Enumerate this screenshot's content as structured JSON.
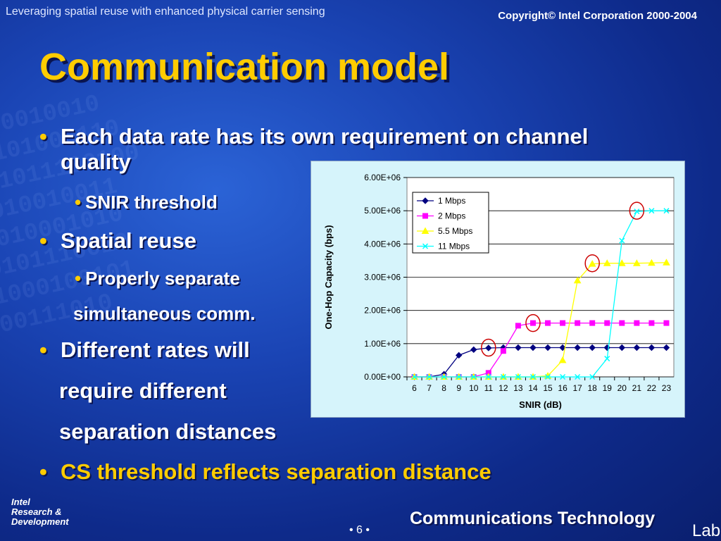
{
  "header": {
    "subtitle": "Leveraging spatial reuse with enhanced physical carrier sensing",
    "copyright": "Copyright© Intel Corporation 2000-2004"
  },
  "title": "Communication model",
  "bullets": {
    "b1_line1": "Each data rate has its own requirement on channel",
    "b1_line2": "quality",
    "b1_sub": "SNIR threshold",
    "b2": "Spatial reuse",
    "b2_sub_line1": "Properly separate",
    "b2_sub_line2": "simultaneous comm.",
    "b3_line1": "Different rates will",
    "b3_line2": "require different",
    "b3_line3": "separation distances",
    "b4": "CS threshold reflects separation distance"
  },
  "footer": {
    "intel_line1": "Intel",
    "intel_line2": "Research &",
    "intel_line3": "Development",
    "page": "• 6 •",
    "group": "Communications Technology",
    "lab": "Lab"
  },
  "colors": {
    "title": "#ffcc00",
    "bullet": "#ffcc00",
    "s1": "#000080",
    "s2": "#ff00ff",
    "s3": "#ffff00",
    "s4": "#00ffff",
    "circle": "#cc0000"
  },
  "chart_data": {
    "type": "line",
    "xlabel": "SNIR (dB)",
    "ylabel": "One-Hop Capacity (bps)",
    "x": [
      6,
      7,
      8,
      9,
      10,
      11,
      12,
      13,
      14,
      15,
      16,
      17,
      18,
      19,
      20,
      21,
      22,
      23
    ],
    "ylim": [
      0,
      6000000
    ],
    "yticks": [
      "0.00E+00",
      "1.00E+06",
      "2.00E+06",
      "3.00E+06",
      "4.00E+06",
      "5.00E+06",
      "6.00E+06"
    ],
    "legend_position": "top-left",
    "series": [
      {
        "name": "1 Mbps",
        "marker": "diamond",
        "color": "#000080",
        "values": [
          0,
          0,
          80000,
          650000,
          820000,
          870000,
          880000,
          880000,
          880000,
          880000,
          880000,
          880000,
          880000,
          880000,
          880000,
          880000,
          880000,
          880000
        ]
      },
      {
        "name": "2 Mbps",
        "marker": "square",
        "color": "#ff00ff",
        "values": [
          0,
          0,
          0,
          0,
          0,
          120000,
          780000,
          1540000,
          1620000,
          1620000,
          1620000,
          1620000,
          1620000,
          1620000,
          1620000,
          1620000,
          1620000,
          1620000
        ]
      },
      {
        "name": "5.5  Mbps",
        "marker": "triangle",
        "color": "#ffff00",
        "values": [
          0,
          0,
          0,
          0,
          0,
          0,
          0,
          0,
          0,
          30000,
          500000,
          2900000,
          3400000,
          3420000,
          3420000,
          3420000,
          3430000,
          3440000
        ]
      },
      {
        "name": "11 Mbps",
        "marker": "x",
        "color": "#00ffff",
        "values": [
          0,
          0,
          0,
          0,
          0,
          0,
          0,
          0,
          0,
          0,
          0,
          0,
          0,
          550000,
          4100000,
          4980000,
          5000000,
          5000000
        ]
      }
    ],
    "highlights": [
      {
        "x": 11,
        "y": 880000
      },
      {
        "x": 14,
        "y": 1620000
      },
      {
        "x": 18,
        "y": 3420000
      },
      {
        "x": 21,
        "y": 5000000
      }
    ]
  }
}
